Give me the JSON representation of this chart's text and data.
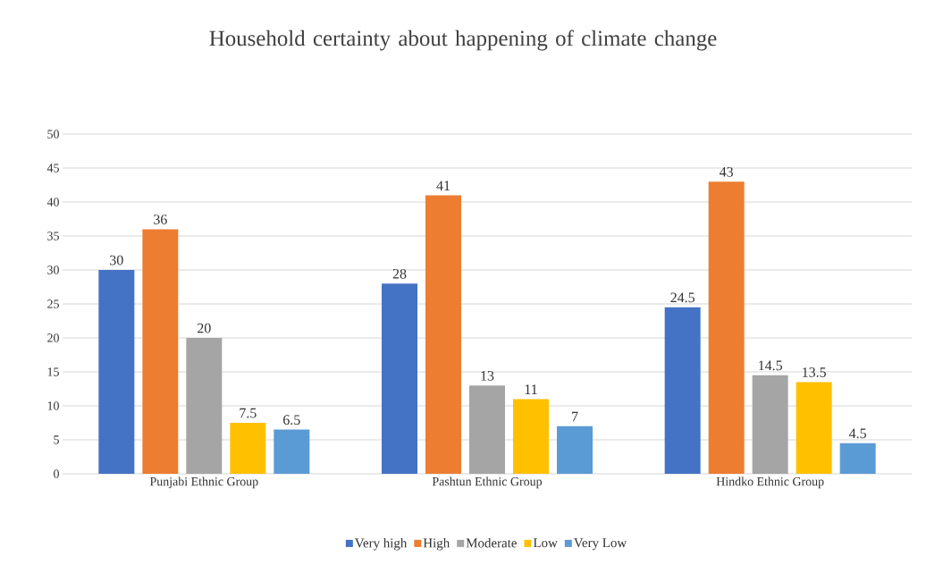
{
  "chart_data": {
    "type": "bar",
    "title": "Household certainty about happening of climate change",
    "categories": [
      "Punjabi Ethnic Group",
      "Pashtun Ethnic Group",
      "Hindko Ethnic Group"
    ],
    "series": [
      {
        "name": "Very high",
        "color": "#4472c4",
        "values": [
          30,
          28,
          24.5
        ]
      },
      {
        "name": "High",
        "color": "#ed7d31",
        "values": [
          36,
          41,
          43
        ]
      },
      {
        "name": "Moderate",
        "color": "#a5a5a5",
        "values": [
          20,
          13,
          14.5
        ]
      },
      {
        "name": "Low",
        "color": "#ffc000",
        "values": [
          7.5,
          11,
          13.5
        ]
      },
      {
        "name": "Very Low",
        "color": "#5b9bd5",
        "values": [
          6.5,
          7,
          4.5
        ]
      }
    ],
    "ylim": [
      0,
      50
    ],
    "yticks": [
      0,
      5,
      10,
      15,
      20,
      25,
      30,
      35,
      40,
      45,
      50
    ],
    "grid": "y",
    "legend": "bottom",
    "data_labels": true
  }
}
